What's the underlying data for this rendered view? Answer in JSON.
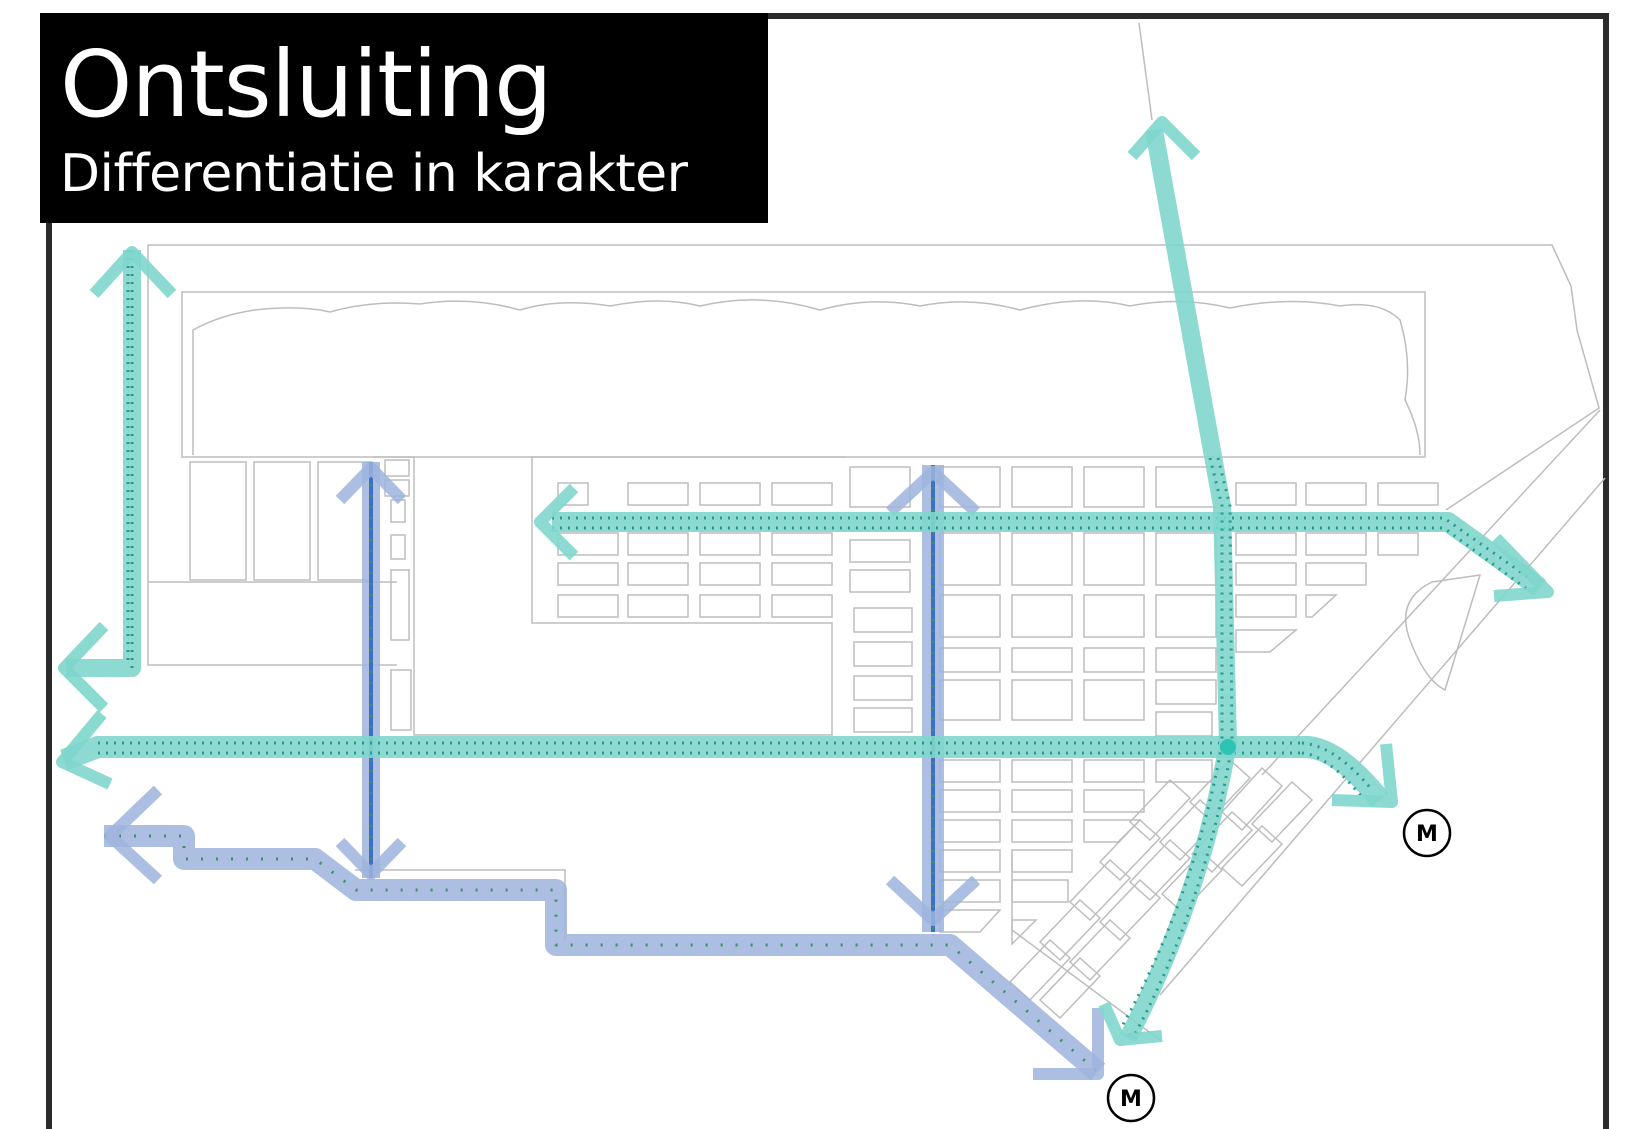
{
  "header": {
    "title": "Ontsluiting",
    "subtitle": "Differentiatie in karakter"
  },
  "metro_stations": [
    {
      "label": "M"
    },
    {
      "label": "M"
    }
  ],
  "colors": {
    "primary_route": "#7fd6cc",
    "primary_route_dots": "#2a9a8a",
    "secondary_route": "#9db4de",
    "secondary_route_core": "#3f6fc2",
    "secondary_route_dots": "#3f8f6a",
    "block_outline": "#bdbdbd",
    "frame": "#2b2b2b",
    "title_bg": "#000000",
    "title_text": "#ffffff"
  },
  "legend_icons": {
    "metro": "metro-station-icon",
    "arrow": "route-arrow-icon"
  }
}
